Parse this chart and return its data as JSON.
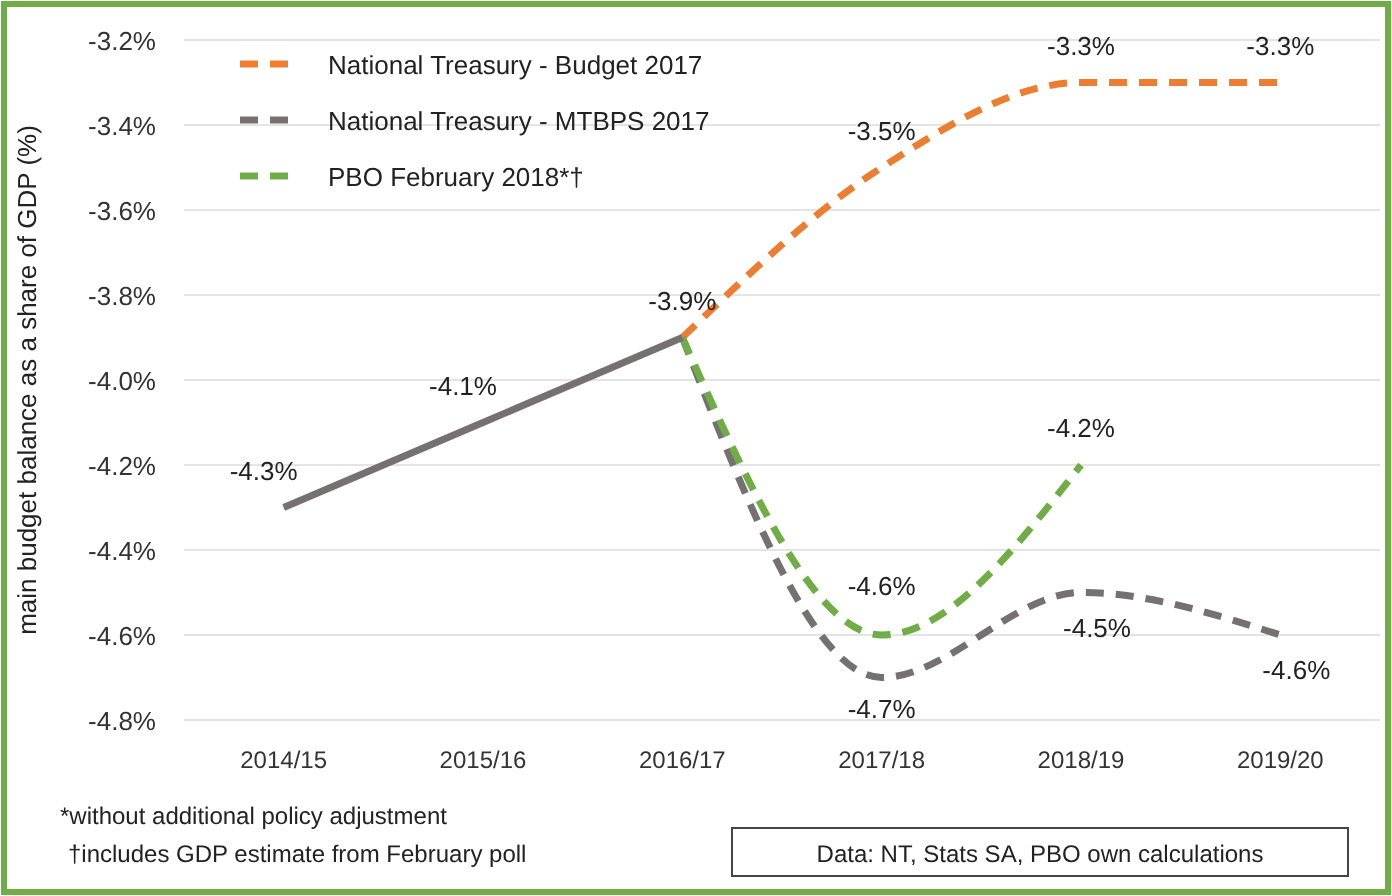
{
  "chart_data": {
    "type": "line",
    "ylabel": "main budget balance as a share of GDP (%)",
    "categories": [
      "2014/15",
      "2015/16",
      "2016/17",
      "2017/18",
      "2018/19",
      "2019/20"
    ],
    "series": [
      {
        "name": "National Treasury - Budget 2017",
        "color": "#ed7d31",
        "line_style": "dashed",
        "values": [
          null,
          null,
          -3.9,
          -3.5,
          -3.3,
          -3.3
        ],
        "value_labels": [
          null,
          null,
          "-3.9%",
          "-3.5%",
          "-3.3%",
          "-3.3%"
        ]
      },
      {
        "name": "National Treasury - MTBPS 2017",
        "color": "#767171",
        "line_style": "dashed",
        "values": [
          null,
          null,
          -3.9,
          -4.7,
          -4.5,
          -4.6
        ],
        "value_labels": [
          null,
          null,
          null,
          "-4.7%",
          "-4.5%",
          "-4.6%"
        ]
      },
      {
        "name": "PBO February 2018*†",
        "color": "#70ad47",
        "line_style": "dashed",
        "values": [
          null,
          null,
          -3.9,
          -4.6,
          -4.2,
          null
        ],
        "value_labels": [
          null,
          null,
          null,
          "-4.6%",
          "-4.2%",
          null
        ]
      },
      {
        "color": "#767171",
        "line_style": "solid",
        "values": [
          -4.3,
          -4.1,
          -3.9,
          null,
          null,
          null
        ],
        "value_labels": [
          "-4.3%",
          "-4.1%",
          null,
          null,
          null,
          null
        ]
      }
    ],
    "ylim": [
      -4.8,
      -3.2
    ],
    "yticks": [
      {
        "value": -4.8,
        "label": "-4.8%"
      },
      {
        "value": -4.6,
        "label": "-4.6%"
      },
      {
        "value": -4.4,
        "label": "-4.4%"
      },
      {
        "value": -4.2,
        "label": "-4.2%"
      },
      {
        "value": -4.0,
        "label": "-4.0%"
      },
      {
        "value": -3.8,
        "label": "-3.8%"
      },
      {
        "value": -3.6,
        "label": "-3.6%"
      },
      {
        "value": -3.4,
        "label": "-3.4%"
      },
      {
        "value": -3.2,
        "label": "-3.2%"
      }
    ],
    "grid": "y",
    "legend": "top left",
    "marker": "none",
    "annotations": [
      "*without additional policy adjustment",
      "†includes GDP estimate from February poll",
      "Data: NT, Stats SA, PBO own calculations"
    ]
  }
}
